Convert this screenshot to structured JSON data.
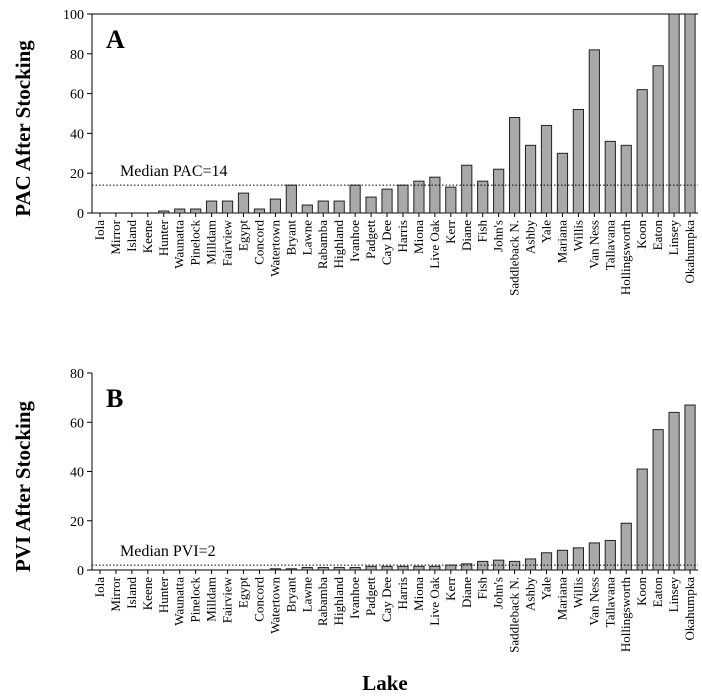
{
  "chart_data": [
    {
      "type": "bar",
      "panel_label": "A",
      "y_label": "PAC After Stocking",
      "categories": [
        "Iola",
        "Mirror",
        "Island",
        "Keene",
        "Hunter",
        "Waunatta",
        "Pinelock",
        "Milldam",
        "Fairview",
        "Egypt",
        "Concord",
        "Watertown",
        "Bryant",
        "Lawne",
        "Rabamba",
        "Highland",
        "Ivanhoe",
        "Padgett",
        "Cay Dee",
        "Harris",
        "Miona",
        "Live Oak",
        "Kerr",
        "Diane",
        "Fish",
        "John's",
        "Saddleback N.",
        "Ashby",
        "Yale",
        "Mariana",
        "Willis",
        "Van Ness",
        "Tallavana",
        "Hollingsworth",
        "Koon",
        "Eaton",
        "Linsey",
        "Okahumpka"
      ],
      "values": [
        0,
        0,
        0,
        0,
        1,
        2,
        2,
        6,
        6,
        10,
        2,
        7,
        14,
        4,
        6,
        6,
        14,
        8,
        12,
        14,
        16,
        18,
        13,
        24,
        16,
        22,
        48,
        34,
        44,
        30,
        52,
        82,
        36,
        34,
        62,
        74,
        100,
        100
      ],
      "color": "#a9a9a9",
      "ylim": [
        0,
        100
      ],
      "yticks": [
        0,
        20,
        40,
        60,
        80,
        100
      ],
      "median_line": {
        "value": 14,
        "label": "Median PAC=14"
      }
    },
    {
      "type": "bar",
      "panel_label": "B",
      "y_label": "PVI After Stocking",
      "x_label": "Lake",
      "categories": [
        "Iola",
        "Mirror",
        "Island",
        "Keene",
        "Hunter",
        "Waunatta",
        "Pinelock",
        "Milldam",
        "Fairview",
        "Egypt",
        "Concord",
        "Watertown",
        "Bryant",
        "Lawne",
        "Rabamba",
        "Highland",
        "Ivanhoe",
        "Padgett",
        "Cay Dee",
        "Harris",
        "Miona",
        "Live Oak",
        "Kerr",
        "Diane",
        "Fish",
        "John's",
        "Saddleback N.",
        "Ashby",
        "Yale",
        "Mariana",
        "Willis",
        "Van Ness",
        "Tallavana",
        "Hollingsworth",
        "Koon",
        "Eaton",
        "Linsey",
        "Okahumpka"
      ],
      "values": [
        0,
        0,
        0,
        0,
        0,
        0,
        0,
        0,
        0,
        0,
        0,
        0.5,
        0.5,
        1,
        1,
        1,
        1,
        1.5,
        1.5,
        1.5,
        1.5,
        1.5,
        2,
        2.5,
        3.5,
        4,
        3.5,
        4.5,
        7,
        8,
        9,
        11,
        12,
        19,
        41,
        57,
        64,
        67
      ],
      "color": "#a9a9a9",
      "ylim": [
        0,
        80
      ],
      "yticks": [
        0,
        20,
        40,
        60,
        80
      ],
      "median_line": {
        "value": 2,
        "label": "Median PVI=2"
      }
    }
  ]
}
